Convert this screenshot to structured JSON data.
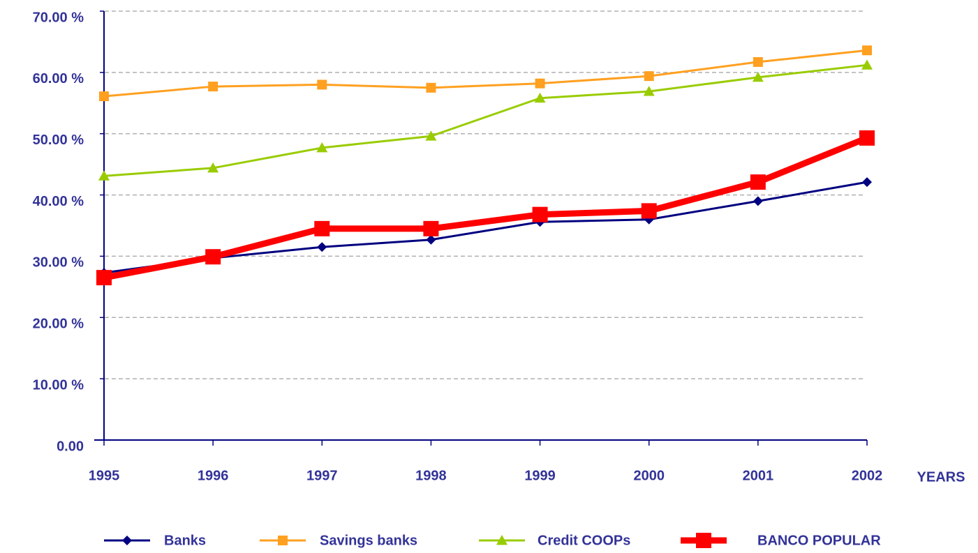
{
  "chart_data": {
    "type": "line",
    "x_label": "YEARS",
    "categories": [
      "1995",
      "1996",
      "1997",
      "1998",
      "1999",
      "2000",
      "2001",
      "2002"
    ],
    "series": [
      {
        "name": "Banks",
        "color": "#000080",
        "marker": "diamond",
        "values": [
          27.3,
          29.7,
          31.5,
          32.7,
          35.6,
          36.0,
          39.0,
          42.1
        ]
      },
      {
        "name": "Savings banks",
        "color": "#ffa020",
        "marker": "square",
        "values": [
          56.1,
          57.7,
          58.0,
          57.5,
          58.2,
          59.4,
          61.7,
          63.6
        ]
      },
      {
        "name": "Credit COOPs",
        "color": "#99cc00",
        "marker": "triangle",
        "values": [
          43.1,
          44.4,
          47.7,
          49.6,
          55.8,
          56.9,
          59.2,
          61.2
        ]
      },
      {
        "name": "BANCO POPULAR",
        "color": "#ff0000",
        "marker": "square",
        "values": [
          26.5,
          29.9,
          34.5,
          34.5,
          36.8,
          37.4,
          42.1,
          49.3
        ]
      }
    ],
    "ylim": [
      0,
      70
    ],
    "yticks": [
      {
        "value": 0,
        "label": "0.00"
      },
      {
        "value": 10,
        "label": "10.00 %"
      },
      {
        "value": 20,
        "label": "20.00 %"
      },
      {
        "value": 30,
        "label": "30.00 %"
      },
      {
        "value": 40,
        "label": "40.00 %"
      },
      {
        "value": 50,
        "label": "50.00 %"
      },
      {
        "value": 60,
        "label": "60.00 %"
      },
      {
        "value": 70,
        "label": "70.00 %"
      }
    ],
    "grid": true,
    "legend": "bottom"
  }
}
